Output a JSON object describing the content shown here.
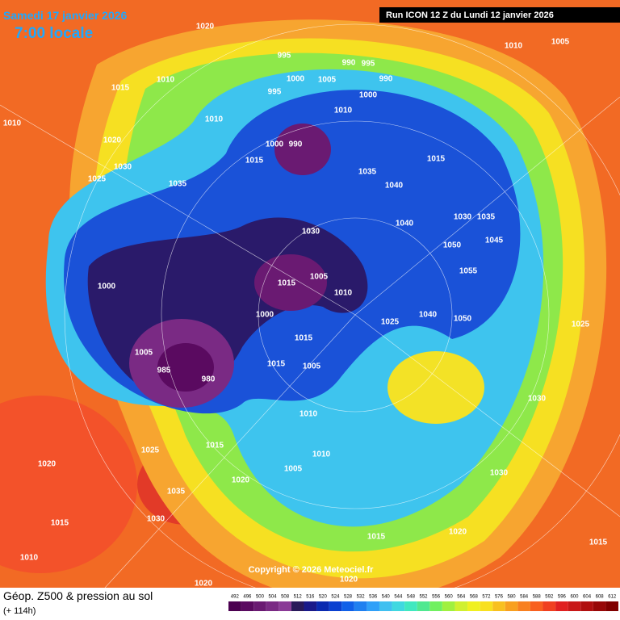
{
  "header": {
    "date": "Samedi 17 janvier 2026",
    "time": "7:00 locale",
    "run": "Run ICON 12 Z du Lundi 12 janvier 2026"
  },
  "footer": {
    "parameter": "Géop. Z500 & pression au sol",
    "lead_time": "(+ 114h)",
    "copyright": "Copyright © 2026 Meteociel.fr"
  },
  "legend": {
    "values": [
      492,
      496,
      500,
      504,
      508,
      512,
      516,
      520,
      524,
      528,
      532,
      536,
      540,
      544,
      548,
      552,
      556,
      560,
      564,
      568,
      572,
      576,
      580,
      584,
      588,
      592,
      596,
      600,
      604,
      608,
      612
    ],
    "colors": [
      "#4b0050",
      "#5a0a60",
      "#6a1a72",
      "#7a2a84",
      "#8a3a96",
      "#2a1a5a",
      "#1a1a8a",
      "#0a2ab0",
      "#0a40d0",
      "#1060e8",
      "#2080f0",
      "#30a0f8",
      "#40c0f0",
      "#40d8e0",
      "#40e8c0",
      "#50e890",
      "#70f060",
      "#a0f040",
      "#d0f030",
      "#f0f020",
      "#f8e020",
      "#f8c020",
      "#f8a020",
      "#f88020",
      "#f86020",
      "#f04020",
      "#e02020",
      "#c81818",
      "#b01010",
      "#980808",
      "#800000"
    ]
  },
  "pressure_labels": [
    1020,
    1010,
    1005,
    995,
    990,
    995,
    1000,
    1005,
    990,
    1015,
    1010,
    995,
    1000,
    1010,
    1010,
    1010,
    1020,
    1000,
    990,
    1030,
    1015,
    1015,
    1025,
    1035,
    1035,
    1040,
    1030,
    1035,
    1040,
    1030,
    1050,
    1055,
    1045,
    1000,
    1015,
    1005,
    1010,
    1000,
    1050,
    1040,
    1025,
    1015,
    1005,
    1015,
    1005,
    980,
    985,
    1010,
    1030,
    1025,
    1015,
    1020,
    1035,
    1020,
    1030,
    1015,
    1010,
    1020,
    1015,
    1015,
    1020,
    1020,
    1025,
    1030,
    1005,
    1010
  ]
}
